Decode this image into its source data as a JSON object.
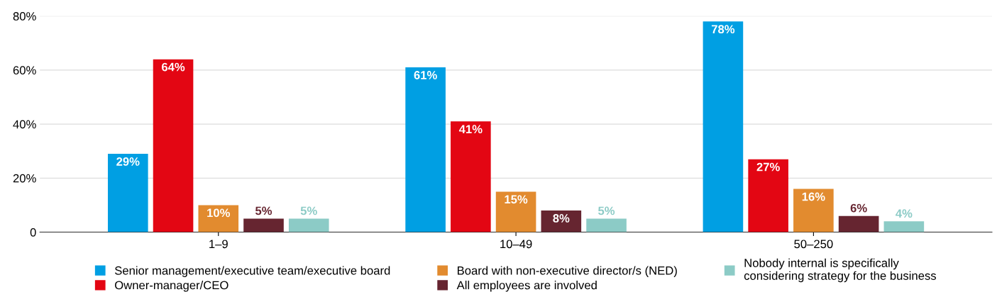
{
  "chart_data": {
    "type": "bar",
    "categories": [
      "1–9",
      "10–49",
      "50–250"
    ],
    "series": [
      {
        "name": "Senior management/executive team/executive board",
        "color": "#009fe3",
        "values": [
          29,
          61,
          78
        ],
        "value_labels": [
          "29%",
          "61%",
          "78%"
        ]
      },
      {
        "name": "Owner-manager/CEO",
        "color": "#e30613",
        "values": [
          64,
          41,
          27
        ],
        "value_labels": [
          "64%",
          "41%",
          "27%"
        ]
      },
      {
        "name": "Board with non-executive director/s (NED)",
        "color": "#e28b2f",
        "values": [
          10,
          15,
          16
        ],
        "value_labels": [
          "10%",
          "15%",
          "16%"
        ]
      },
      {
        "name": "All employees are involved",
        "color": "#662530",
        "values": [
          5,
          8,
          6
        ],
        "value_labels": [
          "5%",
          "8%",
          "6%"
        ]
      },
      {
        "name": "Nobody internal is specifically\nconsidering strategy for the business",
        "color": "#8ccbc6",
        "values": [
          5,
          5,
          4
        ],
        "value_labels": [
          "5%",
          "5%",
          "4%"
        ]
      }
    ],
    "ylim": [
      0,
      80
    ],
    "yticks": [
      {
        "value": 0,
        "label": "0"
      },
      {
        "value": 20,
        "label": "20%"
      },
      {
        "value": 40,
        "label": "40%"
      },
      {
        "value": 60,
        "label": "60%"
      },
      {
        "value": 80,
        "label": "80%"
      }
    ],
    "grid": "y",
    "legend": "bottom"
  }
}
